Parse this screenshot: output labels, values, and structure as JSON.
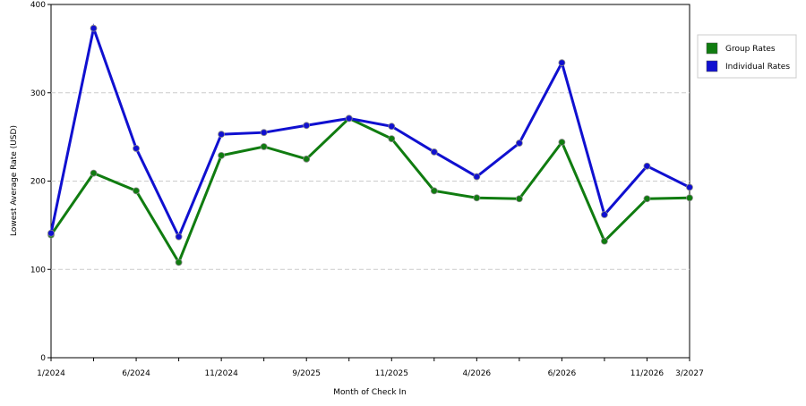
{
  "chart_data": {
    "type": "line",
    "y_label": "Lowest Average Rate (USD)",
    "x_label": "Month of Check In",
    "categories": [
      "1/2024",
      null,
      "6/2024",
      null,
      "11/2024",
      null,
      "9/2025",
      null,
      "11/2025",
      null,
      "4/2026",
      null,
      "6/2026",
      null,
      "11/2026",
      "3/2027"
    ],
    "series": [
      {
        "name": "Group Rates",
        "color": "#107c10",
        "values": [
          139,
          209,
          189,
          108,
          229,
          239,
          225,
          271,
          248,
          189,
          181,
          180,
          244,
          132,
          180,
          181
        ]
      },
      {
        "name": "Individual Rates",
        "color": "#1010d0",
        "values": [
          141,
          373,
          237,
          137,
          253,
          255,
          263,
          271,
          262,
          233,
          205,
          243,
          334,
          162,
          217,
          193
        ]
      }
    ],
    "ylim": [
      0,
      400
    ],
    "yticks": [
      0,
      100,
      200,
      300,
      400
    ],
    "grid": true
  }
}
